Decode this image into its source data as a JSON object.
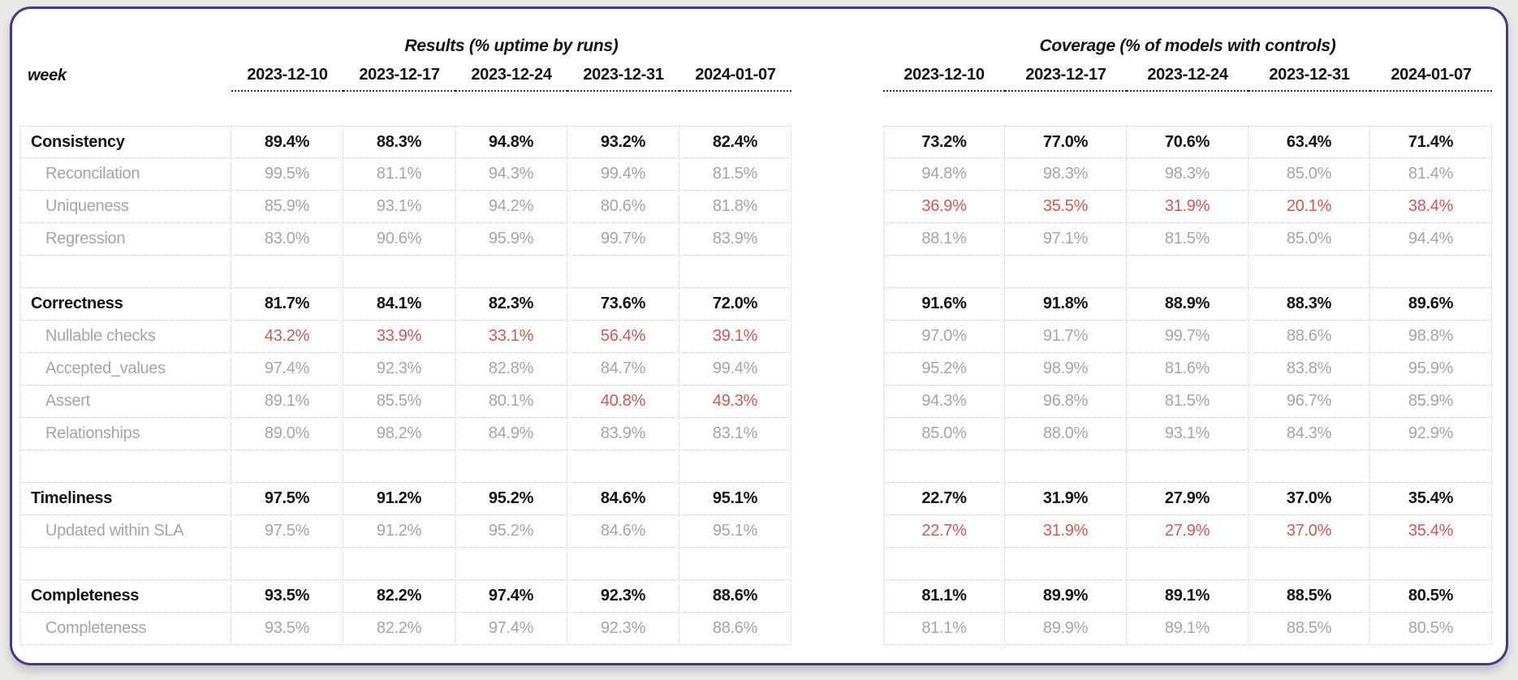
{
  "header": {
    "week_label": "week"
  },
  "colors": {
    "page_bg": "#ebe9e6",
    "card_bg": "#ffffff",
    "accent_border": "#3e3b8a",
    "alert_red": "#cd5a52",
    "muted_text": "#a5a5a5",
    "strong_text": "#141414",
    "grid_dotted": "#d8d8d8",
    "header_line": "#2b2b2b"
  },
  "chart_data": {
    "type": "table",
    "unit": "%",
    "sections": [
      {
        "name": "Results",
        "title": "Results (% uptime by runs)"
      },
      {
        "name": "Coverage",
        "title": "Coverage (% of models with controls)"
      }
    ],
    "weeks": [
      "2023-12-10",
      "2023-12-17",
      "2023-12-24",
      "2023-12-31",
      "2024-01-07"
    ],
    "rows": [
      {
        "kind": "group",
        "label": "Consistency",
        "results": [
          89.4,
          88.3,
          94.8,
          93.2,
          82.4
        ],
        "coverage": [
          73.2,
          77.0,
          70.6,
          63.4,
          71.4
        ]
      },
      {
        "kind": "sub",
        "label": "Reconcilation",
        "results": [
          99.5,
          81.1,
          94.3,
          99.4,
          81.5
        ],
        "coverage": [
          94.8,
          98.3,
          98.3,
          85.0,
          81.4
        ]
      },
      {
        "kind": "sub",
        "label": "Uniqueness",
        "results": [
          85.9,
          93.1,
          94.2,
          80.6,
          81.8
        ],
        "coverage": [
          36.9,
          35.5,
          31.9,
          20.1,
          38.4
        ],
        "coverage_alerts": [
          0,
          1,
          2,
          3,
          4
        ]
      },
      {
        "kind": "sub",
        "label": "Regression",
        "results": [
          83.0,
          90.6,
          95.9,
          99.7,
          83.9
        ],
        "coverage": [
          88.1,
          97.1,
          81.5,
          85.0,
          94.4
        ]
      },
      {
        "kind": "spacer"
      },
      {
        "kind": "group",
        "label": "Correctness",
        "results": [
          81.7,
          84.1,
          82.3,
          73.6,
          72.0
        ],
        "coverage": [
          91.6,
          91.8,
          88.9,
          88.3,
          89.6
        ]
      },
      {
        "kind": "sub",
        "label": "Nullable checks",
        "results": [
          43.2,
          33.9,
          33.1,
          56.4,
          39.1
        ],
        "results_alerts": [
          0,
          1,
          2,
          3,
          4
        ],
        "coverage": [
          97.0,
          91.7,
          99.7,
          88.6,
          98.8
        ]
      },
      {
        "kind": "sub",
        "label": "Accepted_values",
        "results": [
          97.4,
          92.3,
          82.8,
          84.7,
          99.4
        ],
        "coverage": [
          95.2,
          98.9,
          81.6,
          83.8,
          95.9
        ]
      },
      {
        "kind": "sub",
        "label": "Assert",
        "results": [
          89.1,
          85.5,
          80.1,
          40.8,
          49.3
        ],
        "results_alerts": [
          3,
          4
        ],
        "coverage": [
          94.3,
          96.8,
          81.5,
          96.7,
          85.9
        ]
      },
      {
        "kind": "sub",
        "label": "Relationships",
        "results": [
          89.0,
          98.2,
          84.9,
          83.9,
          83.1
        ],
        "coverage": [
          85.0,
          88.0,
          93.1,
          84.3,
          92.9
        ]
      },
      {
        "kind": "spacer"
      },
      {
        "kind": "group",
        "label": "Timeliness",
        "results": [
          97.5,
          91.2,
          95.2,
          84.6,
          95.1
        ],
        "coverage": [
          22.7,
          31.9,
          27.9,
          37.0,
          35.4
        ]
      },
      {
        "kind": "sub",
        "label": "Updated within SLA",
        "results": [
          97.5,
          91.2,
          95.2,
          84.6,
          95.1
        ],
        "coverage": [
          22.7,
          31.9,
          27.9,
          37.0,
          35.4
        ],
        "coverage_alerts": [
          0,
          1,
          2,
          3,
          4
        ]
      },
      {
        "kind": "spacer"
      },
      {
        "kind": "group",
        "label": "Completeness",
        "results": [
          93.5,
          82.2,
          97.4,
          92.3,
          88.6
        ],
        "coverage": [
          81.1,
          89.9,
          89.1,
          88.5,
          80.5
        ]
      },
      {
        "kind": "sub",
        "label": "Completeness",
        "results": [
          93.5,
          82.2,
          97.4,
          92.3,
          88.6
        ],
        "coverage": [
          81.1,
          89.9,
          89.1,
          88.5,
          80.5
        ]
      }
    ]
  }
}
